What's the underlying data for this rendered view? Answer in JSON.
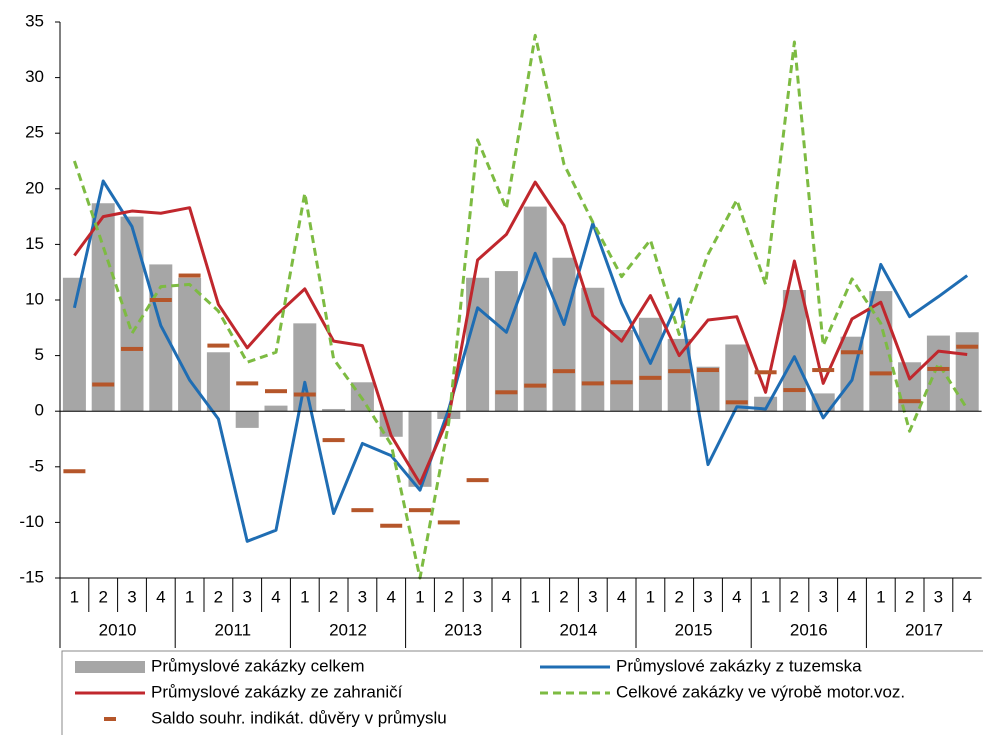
{
  "chart_data": {
    "type": "combo",
    "categories": [
      "1",
      "2",
      "3",
      "4",
      "1",
      "2",
      "3",
      "4",
      "1",
      "2",
      "3",
      "4",
      "1",
      "2",
      "3",
      "4",
      "1",
      "2",
      "3",
      "4",
      "1",
      "2",
      "3",
      "4",
      "1",
      "2",
      "3",
      "4",
      "1",
      "2",
      "3",
      "4"
    ],
    "years": [
      "2010",
      "2011",
      "2012",
      "2013",
      "2014",
      "2015",
      "2016",
      "2017"
    ],
    "series": [
      {
        "name": "Průmyslové zakázky celkem",
        "kind": "bar",
        "color": "#a6a6a6",
        "values": [
          12,
          18.7,
          17.5,
          13.2,
          12,
          5.3,
          -1.5,
          0.5,
          7.9,
          0.2,
          2.6,
          -2.3,
          -6.8,
          -0.7,
          12,
          12.6,
          18.4,
          13.8,
          11.1,
          7.3,
          8.4,
          6.5,
          4,
          6,
          1.3,
          10.9,
          1.6,
          6.7,
          10.8,
          4.4,
          6.8,
          7.1
        ]
      },
      {
        "name": "Průmyslové zakázky z tuzemska",
        "kind": "line",
        "color": "#1f6db3",
        "values": [
          9.3,
          20.7,
          16.6,
          7.7,
          2.8,
          -0.7,
          -11.7,
          -10.7,
          2.6,
          -9.2,
          -2.9,
          -4,
          -7.1,
          0.2,
          9.3,
          7.1,
          14.2,
          7.8,
          16.9,
          9.7,
          4.3,
          10.1,
          -4.8,
          0.4,
          0.2,
          4.9,
          -0.6,
          2.8,
          13.2,
          8.5,
          10.3,
          12.2
        ]
      },
      {
        "name": "Průmyslové zakázky ze zahraničí",
        "kind": "line",
        "color": "#c0272d",
        "values": [
          14,
          17.5,
          18,
          17.8,
          18.3,
          9.6,
          5.7,
          8.6,
          11,
          6.3,
          5.9,
          -2.2,
          -6.5,
          -0.5,
          13.6,
          15.9,
          20.6,
          16.7,
          8.6,
          6.3,
          10.4,
          5,
          8.2,
          8.5,
          1.7,
          13.5,
          2.5,
          8.3,
          9.8,
          2.9,
          5.4,
          5.1
        ]
      },
      {
        "name": "Celkové zakázky ve výrobě motor.voz.",
        "kind": "line",
        "dashed": true,
        "color": "#7dbb42",
        "values": [
          22.5,
          14.8,
          7,
          11.2,
          11.4,
          9,
          4.4,
          5.3,
          19.6,
          4.7,
          1.1,
          -3,
          -15,
          -1,
          24.4,
          18.2,
          33.8,
          22.2,
          17,
          12.1,
          15.4,
          6.9,
          14.1,
          19,
          11.4,
          33.2,
          5.9,
          11.9,
          7.9,
          -1.8,
          4.3,
          0.2
        ]
      },
      {
        "name": "Saldo souhr. indikát. důvěry v průmyslu",
        "kind": "dash",
        "color": "#b5562a",
        "values": [
          -5.4,
          2.4,
          5.6,
          10,
          12.2,
          5.9,
          2.5,
          1.8,
          1.5,
          -2.6,
          -8.9,
          -10.3,
          -8.9,
          -10,
          -6.2,
          1.7,
          2.3,
          3.6,
          2.5,
          2.6,
          3,
          3.6,
          3.7,
          0.8,
          3.5,
          1.9,
          3.7,
          5.3,
          3.4,
          0.9,
          3.8,
          5.8
        ]
      }
    ],
    "ylim": [
      -15,
      35
    ],
    "yticks": [
      -15,
      -10,
      -5,
      0,
      5,
      10,
      15,
      20,
      25,
      30,
      35
    ],
    "grid": false
  }
}
